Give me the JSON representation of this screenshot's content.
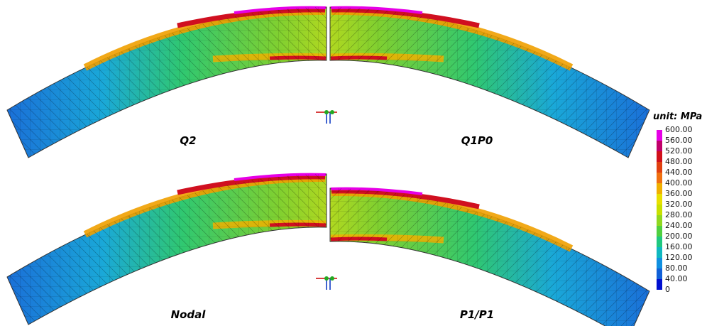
{
  "panels": [
    {
      "label": "Q2"
    },
    {
      "label": "Q1P0"
    },
    {
      "label": "Nodal"
    },
    {
      "label": "P1/P1"
    }
  ],
  "colorbar": {
    "unit": "unit: MPa",
    "labels": [
      "600.00",
      "560.00",
      "520.00",
      "480.00",
      "440.00",
      "400.00",
      "360.00",
      "320.00",
      "280.00",
      "240.00",
      "200.00",
      "160.00",
      "120.00",
      "80.00",
      "40.00",
      "0"
    ],
    "colors": [
      "#e600e6",
      "#c0006a",
      "#d0101a",
      "#e04010",
      "#f07010",
      "#f0b000",
      "#e8e000",
      "#c8e000",
      "#90d820",
      "#50d040",
      "#20c880",
      "#10b8c0",
      "#1090e0",
      "#1060d8",
      "#0010d0"
    ]
  }
}
